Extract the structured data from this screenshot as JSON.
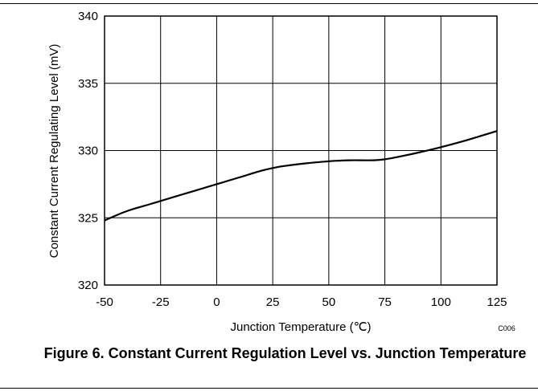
{
  "chart_data": {
    "type": "line",
    "xlabel": "Junction Temperature (℃)",
    "ylabel": "Constant Current Regulating Level (mV)",
    "xlim": [
      -50,
      125
    ],
    "ylim": [
      320,
      340
    ],
    "x_ticks": [
      -50,
      -25,
      0,
      25,
      50,
      75,
      100,
      125
    ],
    "y_ticks": [
      320,
      325,
      330,
      335,
      340
    ],
    "grid": true,
    "code": "C006",
    "series": [
      {
        "x": [
          -50,
          -40,
          -30,
          -20,
          -10,
          0,
          10,
          20,
          25,
          30,
          40,
          50,
          55,
          60,
          70,
          75,
          80,
          90,
          100,
          110,
          120,
          125
        ],
        "y": [
          324.8,
          325.5,
          326.0,
          326.5,
          327.0,
          327.5,
          328.0,
          328.5,
          328.7,
          328.85,
          329.05,
          329.2,
          329.25,
          329.28,
          329.28,
          329.35,
          329.5,
          329.85,
          330.25,
          330.7,
          331.2,
          331.45
        ]
      }
    ]
  },
  "caption": "Figure 6. Constant Current Regulation Level vs. Junction Temperature"
}
